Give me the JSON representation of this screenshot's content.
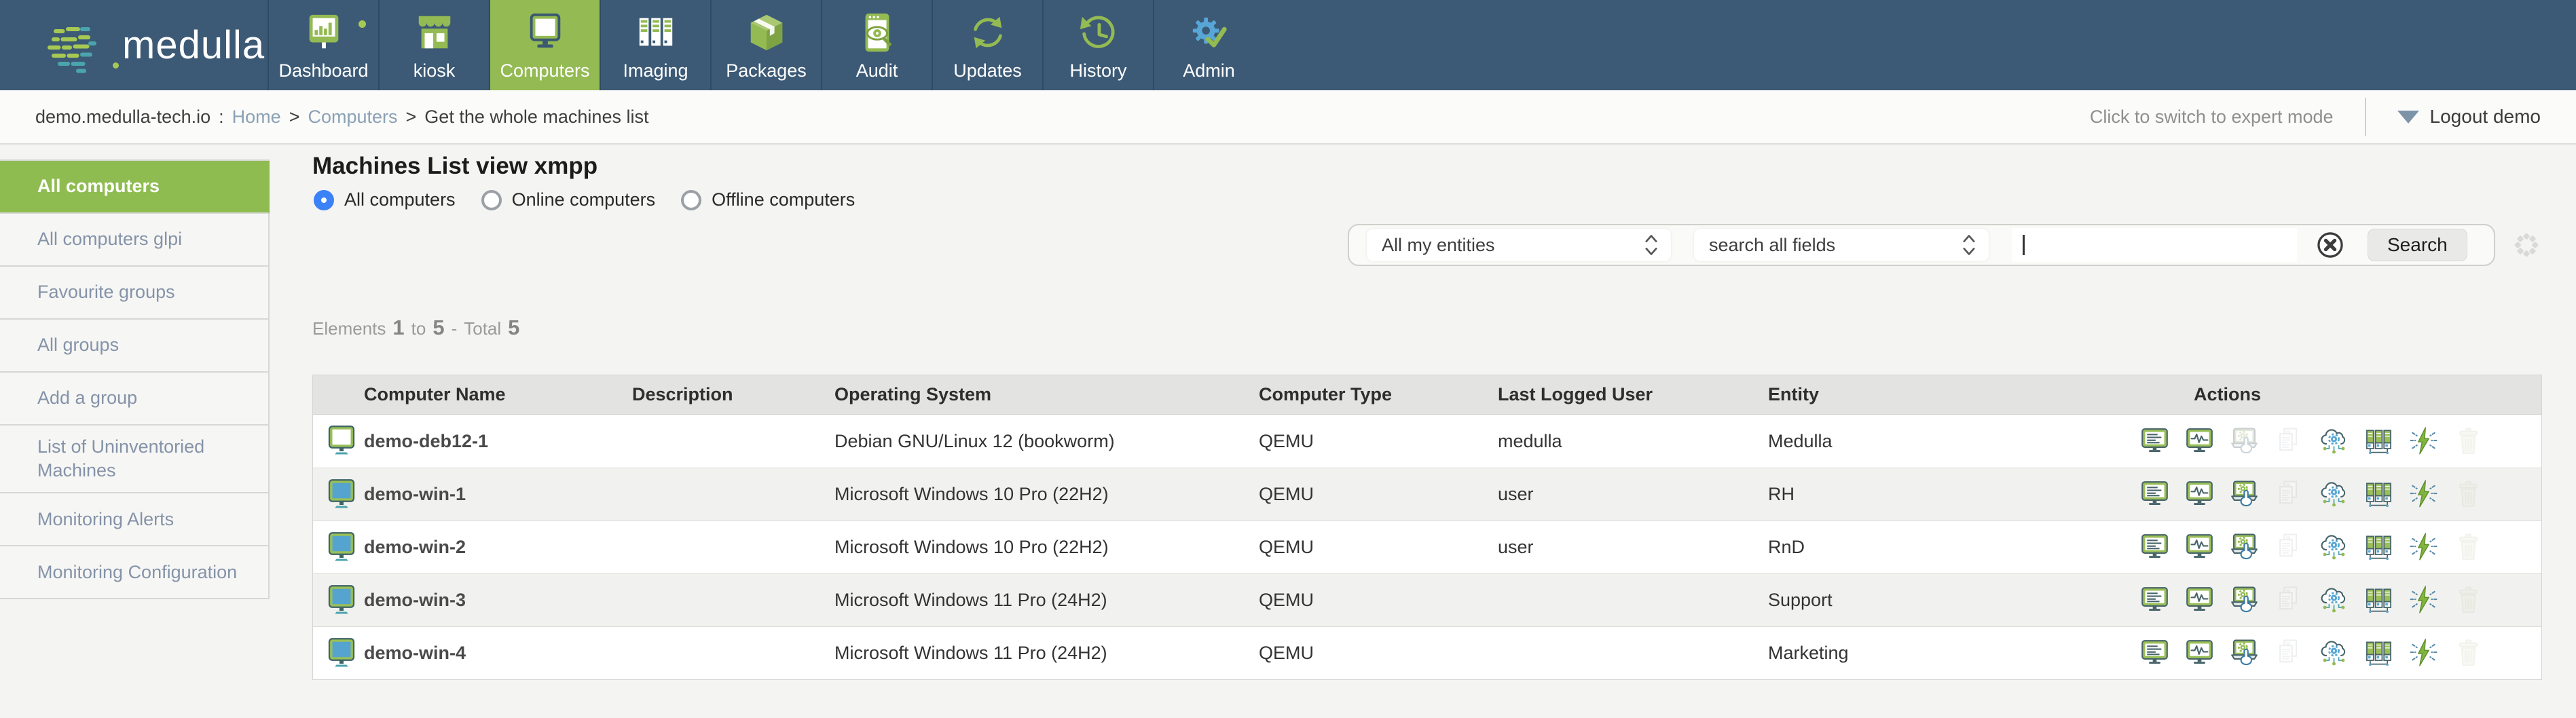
{
  "app_header": {
    "logo_text": "medulla",
    "nav_items": [
      {
        "label": "Dashboard",
        "icon": "dashboard-icon",
        "active": false
      },
      {
        "label": "kiosk",
        "icon": "kiosk-icon",
        "active": false
      },
      {
        "label": "Computers",
        "icon": "computers-icon",
        "active": true
      },
      {
        "label": "Imaging",
        "icon": "imaging-icon",
        "active": false
      },
      {
        "label": "Packages",
        "icon": "packages-icon",
        "active": false
      },
      {
        "label": "Audit",
        "icon": "audit-icon",
        "active": false
      },
      {
        "label": "Updates",
        "icon": "updates-icon",
        "active": false
      },
      {
        "label": "History",
        "icon": "history-icon",
        "active": false
      },
      {
        "label": "Admin",
        "icon": "admin-icon",
        "active": false
      }
    ]
  },
  "breadcrumb_bar": {
    "host": "demo.medulla-tech.io",
    "colon": ":",
    "separator": ">",
    "home": "Home",
    "section": "Computers",
    "current": "Get the whole machines list",
    "expert_mode_label": "Click to switch to expert mode",
    "logout_label": "Logout demo"
  },
  "sidebar": {
    "items": [
      {
        "label": "All computers",
        "active": true
      },
      {
        "label": "All computers glpi",
        "active": false
      },
      {
        "label": "Favourite groups",
        "active": false
      },
      {
        "label": "All groups",
        "active": false
      },
      {
        "label": "Add a group",
        "active": false
      },
      {
        "label": "List of Uninventoried Machines",
        "active": false
      },
      {
        "label": "Monitoring Alerts",
        "active": false
      },
      {
        "label": "Monitoring Configuration",
        "active": false
      }
    ]
  },
  "main": {
    "title": "Machines List view xmpp",
    "radio_options": [
      {
        "label": "All computers",
        "selected": true
      },
      {
        "label": "Online computers",
        "selected": false
      },
      {
        "label": "Offline computers",
        "selected": false
      }
    ],
    "filters": {
      "entity_select_value": "All my entities",
      "field_select_value": "search all fields",
      "search_input_value": "",
      "search_button_label": "Search"
    },
    "summary": {
      "label": "Elements",
      "from": "1",
      "to_label": "to",
      "to": "5",
      "separator": "-",
      "total_label": "Total",
      "total": "5"
    }
  },
  "table": {
    "columns": [
      "Computer Name",
      "Description",
      "Operating System",
      "Computer Type",
      "Last Logged User",
      "Entity",
      "Actions"
    ],
    "action_icon_names": [
      "computer-inventory-icon",
      "monitor-status-icon",
      "remote-control-icon",
      "documents-icon",
      "cloud-services-icon",
      "imaging-rack-icon",
      "quick-action-icon",
      "delete-icon"
    ],
    "rows": [
      {
        "machine_icon": "linux-machine-icon",
        "name": "demo-deb12-1",
        "description": "",
        "os": "Debian GNU/Linux 12 (bookworm)",
        "type": "QEMU",
        "user": "medulla",
        "entity": "Medulla",
        "disabled_actions": [
          "remote-control-icon",
          "documents-icon",
          "delete-icon"
        ]
      },
      {
        "machine_icon": "windows-machine-icon",
        "name": "demo-win-1",
        "description": "",
        "os": "Microsoft Windows 10 Pro (22H2)",
        "type": "QEMU",
        "user": "user",
        "entity": "RH",
        "disabled_actions": [
          "documents-icon",
          "delete-icon"
        ]
      },
      {
        "machine_icon": "windows-machine-icon",
        "name": "demo-win-2",
        "description": "",
        "os": "Microsoft Windows 10 Pro (22H2)",
        "type": "QEMU",
        "user": "user",
        "entity": "RnD",
        "disabled_actions": [
          "documents-icon",
          "delete-icon"
        ]
      },
      {
        "machine_icon": "windows-machine-icon",
        "name": "demo-win-3",
        "description": "",
        "os": "Microsoft Windows 11 Pro (24H2)",
        "type": "QEMU",
        "user": "",
        "entity": "Support",
        "disabled_actions": [
          "documents-icon",
          "delete-icon"
        ]
      },
      {
        "machine_icon": "windows-machine-icon",
        "name": "demo-win-4",
        "description": "",
        "os": "Microsoft Windows 11 Pro (24H2)",
        "type": "QEMU",
        "user": "",
        "entity": "Marketing",
        "disabled_actions": [
          "documents-icon",
          "delete-icon"
        ]
      }
    ]
  },
  "colors": {
    "nav_background": "#3c5a75",
    "accent_green": "#94ba53",
    "sidebar_selected_green": "#8fbc50",
    "radio_selected_blue": "#3b82f6",
    "breadcrumb_link": "#8ba1b6"
  }
}
